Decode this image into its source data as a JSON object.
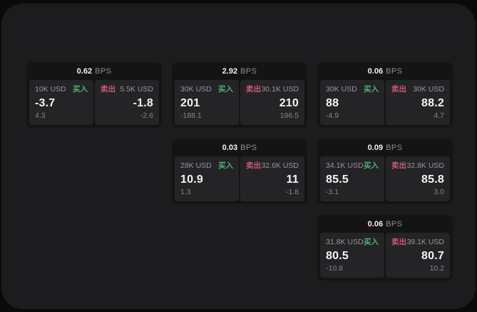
{
  "labels": {
    "buy": "买入",
    "sell": "卖出",
    "bps": "BPS"
  },
  "colors": {
    "buy_green": "#4fb26f",
    "sell_red": "#cb5a6f",
    "window_bg": "#1c1c1e",
    "card_bg": "#141415",
    "panel_bg": "#242427",
    "outer_bg": "#0a0a0a"
  },
  "cards": [
    {
      "bps": "0.62",
      "buy": {
        "amount": "10K USD",
        "price": "-3.7",
        "delta": "4.3"
      },
      "sell": {
        "amount": "5.5K USD",
        "price": "-1.8",
        "delta": "-2.6"
      }
    },
    {
      "bps": "2.92",
      "buy": {
        "amount": "30K USD",
        "price": "201",
        "delta": "-188.1"
      },
      "sell": {
        "amount": "30.1K USD",
        "price": "210",
        "delta": "196.5"
      }
    },
    {
      "bps": "0.06",
      "buy": {
        "amount": "30K USD",
        "price": "88",
        "delta": "-4.9"
      },
      "sell": {
        "amount": "30K USD",
        "price": "88.2",
        "delta": "4.7"
      }
    },
    {
      "bps": "0.03",
      "buy": {
        "amount": "28K USD",
        "price": "10.9",
        "delta": "1.3"
      },
      "sell": {
        "amount": "32.6K USD",
        "price": "11",
        "delta": "-1.8"
      }
    },
    {
      "bps": "0.09",
      "buy": {
        "amount": "34.1K USD",
        "price": "85.5",
        "delta": "-3.1"
      },
      "sell": {
        "amount": "32.8K USD",
        "price": "85.8",
        "delta": "3.0"
      }
    },
    {
      "bps": "0.06",
      "buy": {
        "amount": "31.8K USD",
        "price": "80.5",
        "delta": "-10.8"
      },
      "sell": {
        "amount": "39.1K USD",
        "price": "80.7",
        "delta": "10.2"
      }
    }
  ]
}
